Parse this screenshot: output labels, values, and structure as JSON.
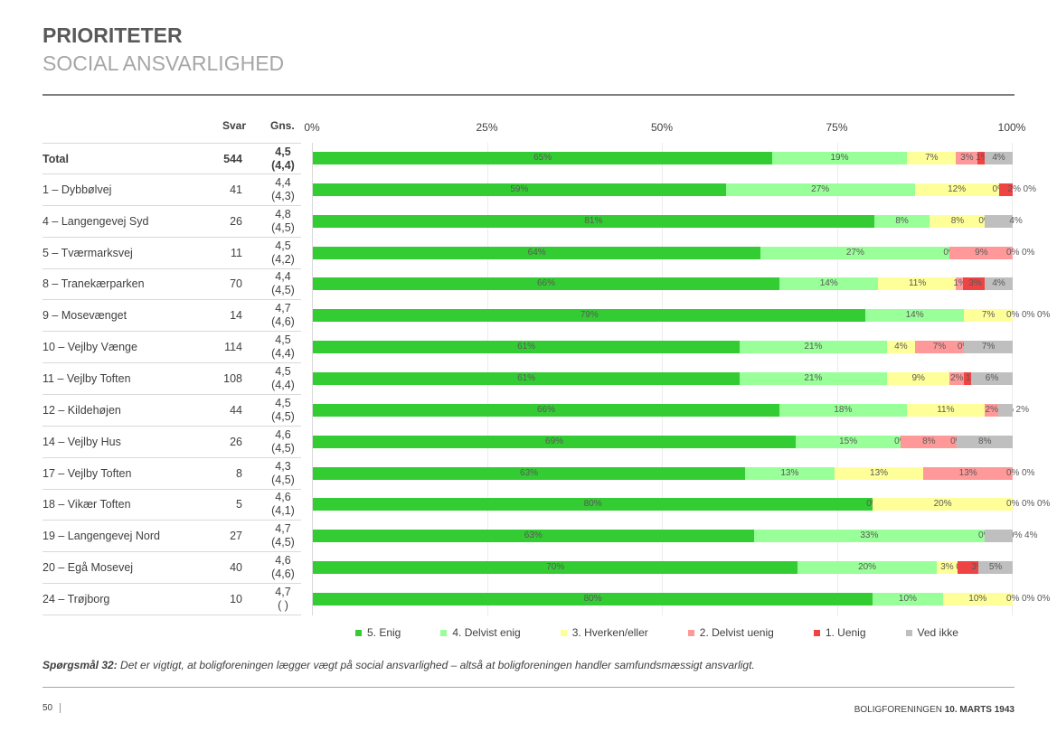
{
  "header": {
    "title": "PRIORITETER",
    "subtitle": "SOCIAL ANSVARLIGHED"
  },
  "columns": {
    "svar": "Svar",
    "gns": "Gns."
  },
  "chart_data": {
    "type": "bar",
    "orientation": "horizontal",
    "stacked": true,
    "x_ticks": [
      "0%",
      "25%",
      "50%",
      "75%",
      "100%"
    ],
    "xlim": [
      0,
      100
    ],
    "series_names": [
      "5. Enig",
      "4. Delvist enig",
      "3. Hverken/eller",
      "2. Delvist uenig",
      "1. Uenig",
      "Ved ikke"
    ],
    "colors": [
      "#33cc33",
      "#99ff99",
      "#ffff99",
      "#ff9999",
      "#ee4444",
      "#bfbfbf"
    ],
    "rows": [
      {
        "label": "Total",
        "svar": "544",
        "gns": "4,5",
        "gns_prev": "(4,4)",
        "values": [
          65,
          19,
          7,
          3,
          1,
          4
        ]
      },
      {
        "label": "1 – Dybbølvej",
        "svar": "41",
        "gns": "4,4",
        "gns_prev": "(4,3)",
        "values": [
          59,
          27,
          12,
          0,
          2,
          0
        ]
      },
      {
        "label": "4 – Langengevej Syd",
        "svar": "26",
        "gns": "4,8",
        "gns_prev": "(4,5)",
        "values": [
          81,
          8,
          8,
          0,
          0,
          4
        ]
      },
      {
        "label": "5 – Tværmarksvej",
        "svar": "11",
        "gns": "4,5",
        "gns_prev": "(4,2)",
        "values": [
          64,
          27,
          0,
          9,
          0,
          0
        ]
      },
      {
        "label": "8 – Tranekærparken",
        "svar": "70",
        "gns": "4,4",
        "gns_prev": "(4,5)",
        "values": [
          66,
          14,
          11,
          1,
          3,
          4
        ]
      },
      {
        "label": "9 – Mosevænget",
        "svar": "14",
        "gns": "4,7",
        "gns_prev": "(4,6)",
        "values": [
          79,
          14,
          7,
          0,
          0,
          0
        ]
      },
      {
        "label": "10 – Vejlby Vænge",
        "svar": "114",
        "gns": "4,5",
        "gns_prev": "(4,4)",
        "values": [
          61,
          21,
          4,
          7,
          0,
          7
        ]
      },
      {
        "label": "11 – Vejlby Toften",
        "svar": "108",
        "gns": "4,5",
        "gns_prev": "(4,4)",
        "values": [
          61,
          21,
          9,
          2,
          1,
          6
        ]
      },
      {
        "label": "12 – Kildehøjen",
        "svar": "44",
        "gns": "4,5",
        "gns_prev": "(4,5)",
        "values": [
          66,
          18,
          11,
          2,
          0,
          2
        ]
      },
      {
        "label": "14 – Vejlby Hus",
        "svar": "26",
        "gns": "4,6",
        "gns_prev": "(4,5)",
        "values": [
          69,
          15,
          0,
          8,
          0,
          8
        ]
      },
      {
        "label": "17 – Vejlby Toften",
        "svar": "8",
        "gns": "4,3",
        "gns_prev": "(4,5)",
        "values": [
          63,
          13,
          13,
          13,
          0,
          0
        ]
      },
      {
        "label": "18 – Vikær Toften",
        "svar": "5",
        "gns": "4,6",
        "gns_prev": "(4,1)",
        "values": [
          80,
          0,
          20,
          0,
          0,
          0
        ]
      },
      {
        "label": "19 – Langengevej Nord",
        "svar": "27",
        "gns": "4,7",
        "gns_prev": "(4,5)",
        "values": [
          63,
          33,
          0,
          0,
          0,
          4
        ]
      },
      {
        "label": "20 – Egå Mosevej",
        "svar": "40",
        "gns": "4,6",
        "gns_prev": "(4,6)",
        "values": [
          70,
          20,
          3,
          0,
          3,
          5
        ]
      },
      {
        "label": "24 – Trøjborg",
        "svar": "10",
        "gns": "4,7",
        "gns_prev": "(  )",
        "values": [
          80,
          10,
          10,
          0,
          0,
          0
        ]
      }
    ]
  },
  "question": {
    "label": "Spørgsmål 32:",
    "text": " Det er vigtigt, at boligforeningen lægger vægt på social ansvarlighed – altså at boligforeningen handler samfundsmæssigt ansvarligt."
  },
  "footer": {
    "page": "50",
    "org": "BOLIGFORENINGEN ",
    "org_bold": "10. MARTS 1943"
  }
}
